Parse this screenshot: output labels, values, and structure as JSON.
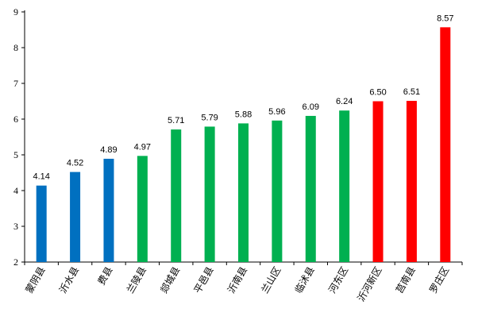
{
  "chart_data": {
    "type": "bar",
    "title": "",
    "xlabel": "",
    "ylabel": "",
    "ylim": [
      2,
      9
    ],
    "yticks": [
      2,
      3,
      4,
      5,
      6,
      7,
      8,
      9
    ],
    "grid": false,
    "legend": "none",
    "categories": [
      "蒙阴县",
      "沂水县",
      "费县",
      "兰陵县",
      "郯城县",
      "平邑县",
      "沂南县",
      "兰山区",
      "临沭县",
      "河东区",
      "沂河新区",
      "莒南县",
      "罗庄区"
    ],
    "values": [
      4.14,
      4.52,
      4.89,
      4.97,
      5.71,
      5.79,
      5.88,
      5.96,
      6.09,
      6.24,
      6.5,
      6.51,
      8.57
    ],
    "value_labels": [
      "4.14",
      "4.52",
      "4.89",
      "4.97",
      "5.71",
      "5.79",
      "5.88",
      "5.96",
      "6.09",
      "6.24",
      "6.50",
      "6.51",
      "8.57"
    ],
    "bar_colors": [
      "#0070c0",
      "#0070c0",
      "#0070c0",
      "#00b050",
      "#00b050",
      "#00b050",
      "#00b050",
      "#00b050",
      "#00b050",
      "#00b050",
      "#ff0000",
      "#ff0000",
      "#ff0000"
    ],
    "axis_color": "#000000"
  }
}
